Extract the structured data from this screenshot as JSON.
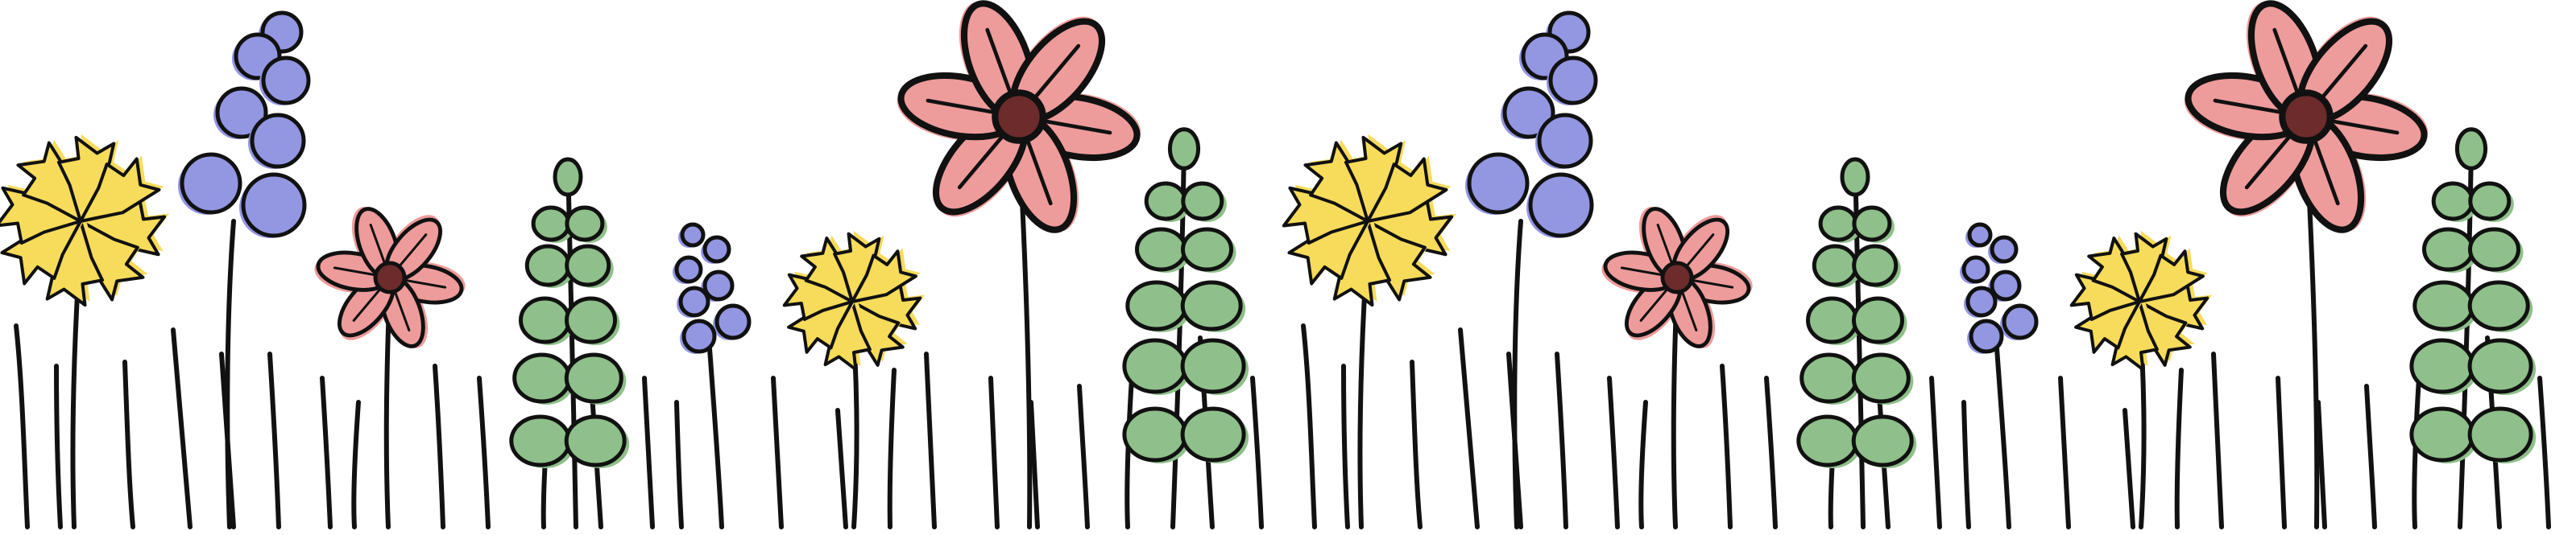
{
  "artwork": {
    "subject": "",
    "repeat_count": 2,
    "colors": {
      "outline": "#111111",
      "stem": "#111111",
      "grass": "#111111",
      "yellow_petal": "#f7db5a",
      "pink_petal": "#ee9b9b",
      "pink_center": "#6d2b2b",
      "blue_bloom": "#9396e1",
      "green_leaf": "#8fbf8a",
      "background": "#ffffff"
    },
    "flower_kinds": [
      "yellow-star-flower",
      "blue-berry-cluster",
      "pink-daisy",
      "green-leaf-sprig"
    ]
  }
}
